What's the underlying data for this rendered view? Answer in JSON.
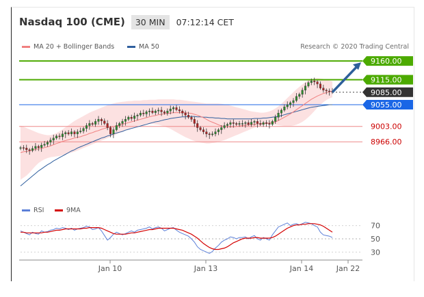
{
  "header": {
    "title": "Nasdaq 100 (CME)",
    "interval": "30 MIN",
    "time": "07:12:14 CET"
  },
  "legend_main": [
    {
      "label": "MA 20 + Bollinger Bands",
      "color": "#f08080"
    },
    {
      "label": "MA 50",
      "color": "#2f5f9e"
    }
  ],
  "legend_rsi": [
    {
      "label": "RSI",
      "color": "#5b7fd8"
    },
    {
      "label": "9MA",
      "color": "#d40000"
    }
  ],
  "credit": "Research © 2020 Trading Central",
  "chart_data": [
    {
      "type": "line",
      "subtype": "candlestick",
      "title": "Nasdaq 100 (CME)",
      "ylim": [
        8830,
        9175
      ],
      "x_ticks": [
        "Jan 10",
        "Jan 13",
        "Jan 14",
        "Jan 22"
      ],
      "levels": [
        {
          "value": 9160,
          "label": "9160.00",
          "color": "#4caa00",
          "kind": "resistance"
        },
        {
          "value": 9115,
          "label": "9115.00",
          "color": "#4caa00",
          "kind": "resistance"
        },
        {
          "value": 9085,
          "label": "9085.00",
          "color": "#333333",
          "kind": "last price"
        },
        {
          "value": 9055,
          "label": "9055.00",
          "color": "#1a66e6",
          "kind": "pivot"
        },
        {
          "value": 9003,
          "label": "9003.00",
          "color": "#cc0000",
          "kind": "support"
        },
        {
          "value": 8966,
          "label": "8966.00",
          "color": "#cc0000",
          "kind": "support"
        }
      ],
      "close": [
        8952,
        8951,
        8947,
        8945,
        8950,
        8955,
        8952,
        8958,
        8960,
        8965,
        8970,
        8975,
        8980,
        8978,
        8985,
        8988,
        8985,
        8990,
        8985,
        8990,
        8992,
        8998,
        9005,
        9010,
        9008,
        9015,
        9020,
        9016,
        9010,
        9000,
        8985,
        8995,
        9005,
        9010,
        9015,
        9020,
        9025,
        9022,
        9028,
        9030,
        9035,
        9033,
        9038,
        9040,
        9036,
        9040,
        9042,
        9038,
        9035,
        9040,
        9045,
        9048,
        9043,
        9040,
        9035,
        9030,
        9025,
        9020,
        9010,
        9000,
        8995,
        8990,
        8985,
        8983,
        8985,
        8990,
        8995,
        9000,
        9005,
        9008,
        9012,
        9010,
        9008,
        9010,
        9010,
        9012,
        9008,
        9013,
        9015,
        9010,
        9008,
        9012,
        9010,
        9008,
        9015,
        9025,
        9035,
        9042,
        9050,
        9055,
        9060,
        9065,
        9075,
        9080,
        9090,
        9100,
        9108,
        9112,
        9110,
        9105,
        9095,
        9090,
        9088,
        9087,
        9085
      ],
      "ma20": [
        8940,
        8942,
        8943,
        8944,
        8946,
        8948,
        8949,
        8950,
        8952,
        8954,
        8956,
        8959,
        8962,
        8964,
        8967,
        8969,
        8971,
        8973,
        8975,
        8977,
        8978,
        8981,
        8983,
        8986,
        8988,
        8991,
        8993,
        8996,
        8998,
        9000,
        9001,
        9003,
        9004,
        9006,
        9008,
        9010,
        9012,
        9014,
        9016,
        9018,
        9020,
        9022,
        9024,
        9026,
        9028,
        9029,
        9031,
        9032,
        9033,
        9034,
        9035,
        9036,
        9036,
        9036,
        9036,
        9036,
        9035,
        9034,
        9032,
        9030,
        9027,
        9024,
        9020,
        9016,
        9013,
        9010,
        9007,
        9004,
        9003,
        9002,
        9002,
        9002,
        9003,
        9004,
        9005,
        9006,
        9007,
        9007,
        9008,
        9009,
        9009,
        9010,
        9010,
        9011,
        9012,
        9014,
        9017,
        9021,
        9025,
        9029,
        9033,
        9038,
        9043,
        9048,
        9053,
        9058,
        9063,
        9068,
        9072,
        9076,
        9079,
        9082,
        9084,
        9086,
        9088
      ],
      "ma50": [
        8860,
        8866,
        8872,
        8878,
        8884,
        8890,
        8896,
        8901,
        8906,
        8911,
        8915,
        8920,
        8924,
        8928,
        8932,
        8936,
        8940,
        8944,
        8947,
        8951,
        8954,
        8957,
        8960,
        8963,
        8966,
        8969,
        8972,
        8975,
        8977,
        8980,
        8982,
        8985,
        8987,
        8989,
        8991,
        8994,
        8996,
        8998,
        9000,
        9002,
        9004,
        9006,
        9008,
        9010,
        9012,
        9014,
        9015,
        9017,
        9019,
        9020,
        9022,
        9023,
        9024,
        9025,
        9026,
        9026,
        9027,
        9027,
        9027,
        9026,
        9026,
        9025,
        9025,
        9024,
        9024,
        9023,
        9023,
        9022,
        9022,
        9021,
        9021,
        9021,
        9021,
        9021,
        9021,
        9021,
        9021,
        9021,
        9022,
        9022,
        9022,
        9023,
        9023,
        9024,
        9025,
        9026,
        9027,
        9029,
        9031,
        9033,
        9035,
        9037,
        9039,
        9041,
        9043,
        9045,
        9047,
        9049,
        9050,
        9051,
        9052,
        9053,
        9054,
        9055,
        9055
      ],
      "bb_upper": [
        9005,
        9002,
        8999,
        8996,
        8993,
        8990,
        8987,
        8985,
        8983,
        8982,
        8982,
        8984,
        8987,
        8991,
        8996,
        9001,
        9006,
        9011,
        9016,
        9020,
        9024,
        9028,
        9032,
        9036,
        9039,
        9042,
        9045,
        9048,
        9051,
        9054,
        9056,
        9058,
        9060,
        9061,
        9062,
        9063,
        9064,
        9064,
        9065,
        9065,
        9065,
        9066,
        9066,
        9067,
        9067,
        9067,
        9068,
        9068,
        9068,
        9068,
        9068,
        9068,
        9067,
        9067,
        9066,
        9065,
        9064,
        9063,
        9062,
        9061,
        9060,
        9059,
        9058,
        9058,
        9058,
        9058,
        9058,
        9057,
        9056,
        9055,
        9053,
        9051,
        9049,
        9047,
        9045,
        9043,
        9041,
        9039,
        9038,
        9037,
        9036,
        9036,
        9037,
        9039,
        9042,
        9046,
        9051,
        9057,
        9064,
        9071,
        9078,
        9085,
        9092,
        9098,
        9104,
        9109,
        9113,
        9116,
        9118,
        9119,
        9118,
        9117,
        9115,
        9113,
        9111
      ],
      "bb_lower": [
        8875,
        8880,
        8885,
        8892,
        8900,
        8908,
        8915,
        8920,
        8924,
        8927,
        8929,
        8930,
        8931,
        8932,
        8934,
        8936,
        8938,
        8940,
        8942,
        8945,
        8948,
        8951,
        8954,
        8957,
        8960,
        8963,
        8966,
        8969,
        8972,
        8975,
        8978,
        8981,
        8984,
        8987,
        8990,
        8993,
        8996,
        8999,
        9002,
        9004,
        9006,
        9007,
        9008,
        9009,
        9009,
        9008,
        9007,
        9005,
        9003,
        9000,
        8997,
        8993,
        8989,
        8985,
        8981,
        8977,
        8974,
        8971,
        8968,
        8966,
        8964,
        8963,
        8962,
        8962,
        8963,
        8964,
        8966,
        8968,
        8970,
        8973,
        8976,
        8979,
        8982,
        8985,
        8988,
        8991,
        8994,
        8997,
        9000,
        9002,
        9004,
        9006,
        9007,
        9008,
        9008,
        9007,
        9006,
        9005,
        9004,
        9004,
        9004,
        9005,
        9007,
        9010,
        9014,
        9019,
        9025,
        9032,
        9040,
        9048,
        9055,
        9061,
        9066,
        9070,
        9073
      ]
    },
    {
      "type": "line",
      "title": "RSI",
      "ylim": [
        20,
        80
      ],
      "y_ticks": [
        70,
        50,
        30
      ],
      "reference_lines": [
        70,
        50,
        30
      ],
      "series": [
        {
          "name": "RSI",
          "color": "#5b7fd8",
          "values": [
            62,
            60,
            58,
            56,
            60,
            58,
            57,
            62,
            60,
            61,
            63,
            64,
            66,
            65,
            67,
            66,
            64,
            66,
            63,
            65,
            66,
            67,
            69,
            68,
            64,
            65,
            67,
            62,
            55,
            48,
            52,
            57,
            60,
            58,
            56,
            58,
            60,
            62,
            60,
            63,
            64,
            65,
            66,
            68,
            65,
            67,
            68,
            66,
            62,
            64,
            66,
            67,
            63,
            60,
            58,
            56,
            54,
            50,
            45,
            38,
            34,
            32,
            30,
            28,
            31,
            36,
            40,
            45,
            48,
            50,
            53,
            52,
            50,
            52,
            52,
            53,
            50,
            53,
            55,
            50,
            48,
            52,
            50,
            48,
            56,
            62,
            68,
            70,
            72,
            74,
            70,
            72,
            73,
            71,
            73,
            75,
            74,
            73,
            70,
            68,
            60,
            56,
            55,
            54,
            52
          ]
        },
        {
          "name": "9MA",
          "color": "#d40000",
          "values": [
            60,
            60,
            59,
            59,
            59,
            59,
            59,
            59,
            60,
            60,
            61,
            62,
            63,
            63,
            64,
            65,
            65,
            65,
            65,
            65,
            65,
            66,
            66,
            67,
            67,
            67,
            67,
            66,
            64,
            62,
            60,
            58,
            57,
            57,
            57,
            57,
            58,
            59,
            59,
            60,
            61,
            62,
            63,
            64,
            64,
            65,
            66,
            66,
            66,
            66,
            66,
            66,
            65,
            64,
            63,
            61,
            59,
            57,
            54,
            51,
            47,
            43,
            40,
            37,
            35,
            34,
            34,
            35,
            36,
            38,
            41,
            44,
            46,
            48,
            50,
            51,
            51,
            51,
            52,
            52,
            51,
            51,
            51,
            51,
            52,
            54,
            57,
            60,
            63,
            66,
            68,
            70,
            71,
            71,
            72,
            72,
            73,
            73,
            73,
            72,
            71,
            69,
            66,
            63,
            60
          ]
        }
      ]
    }
  ]
}
